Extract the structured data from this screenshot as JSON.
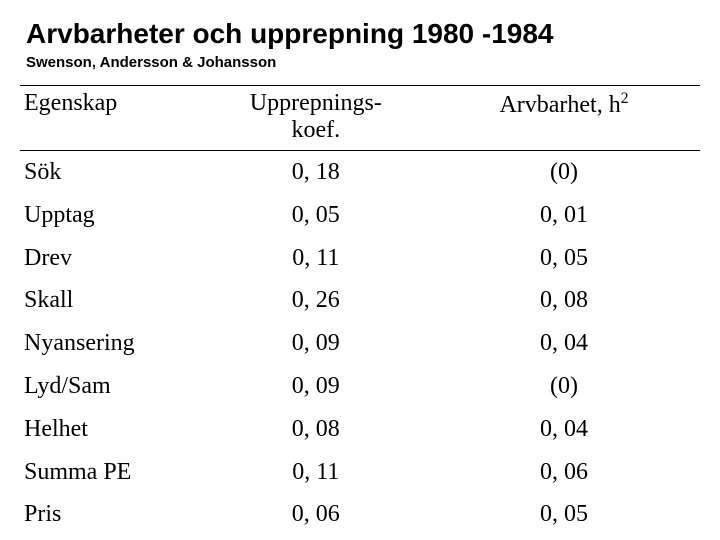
{
  "title": "Arvbarheter och upprepning 1980 -1984",
  "subtitle": "Swenson, Andersson & Johansson",
  "table": {
    "type": "table",
    "header": {
      "col1": "Egenskap",
      "col2_line1": "Upprepnings-",
      "col2_line2": "koef.",
      "col3_prefix": "Arvbarhet, h",
      "col3_sup": "2"
    },
    "columns_align": [
      "left",
      "center",
      "center"
    ],
    "column_widths_pct": [
      27,
      33,
      40
    ],
    "header_fontsize_pt": 24,
    "body_fontsize_pt": 24,
    "border_color": "#000000",
    "background_color": "#ffffff",
    "rows": [
      {
        "c1": "Sök",
        "c2": "0, 18",
        "c3": "(0)"
      },
      {
        "c1": "Upptag",
        "c2": "0, 05",
        "c3": "0, 01"
      },
      {
        "c1": "Drev",
        "c2": "0, 11",
        "c3": "0, 05"
      },
      {
        "c1": "Skall",
        "c2": "0, 26",
        "c3": "0, 08"
      },
      {
        "c1": "Nyansering",
        "c2": "0, 09",
        "c3": "0, 04"
      },
      {
        "c1": "Lyd/Sam",
        "c2": "0, 09",
        "c3": "(0)"
      },
      {
        "c1": "Helhet",
        "c2": "0, 08",
        "c3": "0, 04"
      },
      {
        "c1": "Summa PE",
        "c2": "0, 11",
        "c3": "0, 06"
      },
      {
        "c1": "Pris",
        "c2": "0, 06",
        "c3": "0, 05"
      }
    ]
  },
  "typography": {
    "title_font": "Arial",
    "title_fontsize_pt": 28,
    "title_weight": "bold",
    "subtitle_font": "Arial",
    "subtitle_fontsize_pt": 15,
    "subtitle_weight": "bold",
    "body_font": "Times New Roman",
    "text_color": "#000000"
  }
}
